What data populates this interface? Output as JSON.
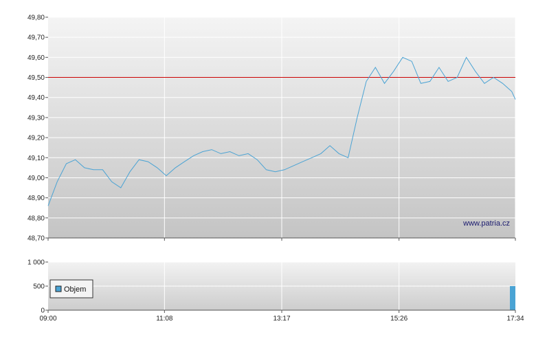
{
  "chart_data": [
    {
      "type": "line",
      "title": "",
      "xlabel": "",
      "ylabel": "",
      "ylim": [
        48.7,
        49.8
      ],
      "y_ticks": [
        "48,70",
        "48,80",
        "48,90",
        "49,00",
        "49,10",
        "49,20",
        "49,30",
        "49,40",
        "49,50",
        "49,60",
        "49,70",
        "49,80"
      ],
      "x_ticks": [
        "09:00",
        "11:08",
        "13:17",
        "15:26",
        "17:34"
      ],
      "reference_line": {
        "value": 49.5,
        "color": "#cc0000"
      },
      "line_color": "#4aa3d4",
      "grid": true,
      "watermark": "www.patria.cz",
      "x": [
        "09:00",
        "09:10",
        "09:20",
        "09:30",
        "09:40",
        "09:50",
        "10:00",
        "10:10",
        "10:20",
        "10:30",
        "10:40",
        "10:50",
        "11:00",
        "11:10",
        "11:20",
        "11:30",
        "11:40",
        "11:50",
        "12:00",
        "12:10",
        "12:20",
        "12:30",
        "12:40",
        "12:50",
        "13:00",
        "13:10",
        "13:20",
        "13:30",
        "13:40",
        "13:50",
        "14:00",
        "14:10",
        "14:20",
        "14:30",
        "14:40",
        "14:50",
        "15:00",
        "15:10",
        "15:20",
        "15:30",
        "15:40",
        "15:50",
        "16:00",
        "16:10",
        "16:20",
        "16:30",
        "16:40",
        "16:50",
        "17:00",
        "17:10",
        "17:20",
        "17:30",
        "17:34"
      ],
      "series": [
        {
          "values": [
            48.86,
            48.98,
            49.07,
            49.09,
            49.05,
            49.04,
            49.04,
            48.98,
            48.95,
            49.03,
            49.09,
            49.08,
            49.05,
            49.01,
            49.05,
            49.08,
            49.11,
            49.13,
            49.14,
            49.12,
            49.13,
            49.11,
            49.12,
            49.09,
            49.04,
            49.03,
            49.04,
            49.06,
            49.08,
            49.1,
            49.12,
            49.16,
            49.12,
            49.1,
            49.3,
            49.48,
            49.55,
            49.47,
            49.53,
            49.6,
            49.58,
            49.47,
            49.48,
            49.55,
            49.48,
            49.5,
            49.6,
            49.53,
            49.47,
            49.5,
            49.47,
            49.43,
            49.39
          ]
        }
      ]
    },
    {
      "type": "bar",
      "title": "",
      "xlabel": "",
      "ylabel": "",
      "ylim": [
        0,
        1000
      ],
      "y_ticks": [
        "0",
        "500",
        "1 000"
      ],
      "x_ticks": [
        "09:00",
        "11:08",
        "13:17",
        "15:26",
        "17:34"
      ],
      "legend": {
        "label": "Objem",
        "position": "left"
      },
      "bar_color": "#4aa3d4",
      "grid": true,
      "series": [
        {
          "name": "Objem",
          "x": [
            "17:34"
          ],
          "values": [
            500
          ]
        }
      ]
    }
  ]
}
